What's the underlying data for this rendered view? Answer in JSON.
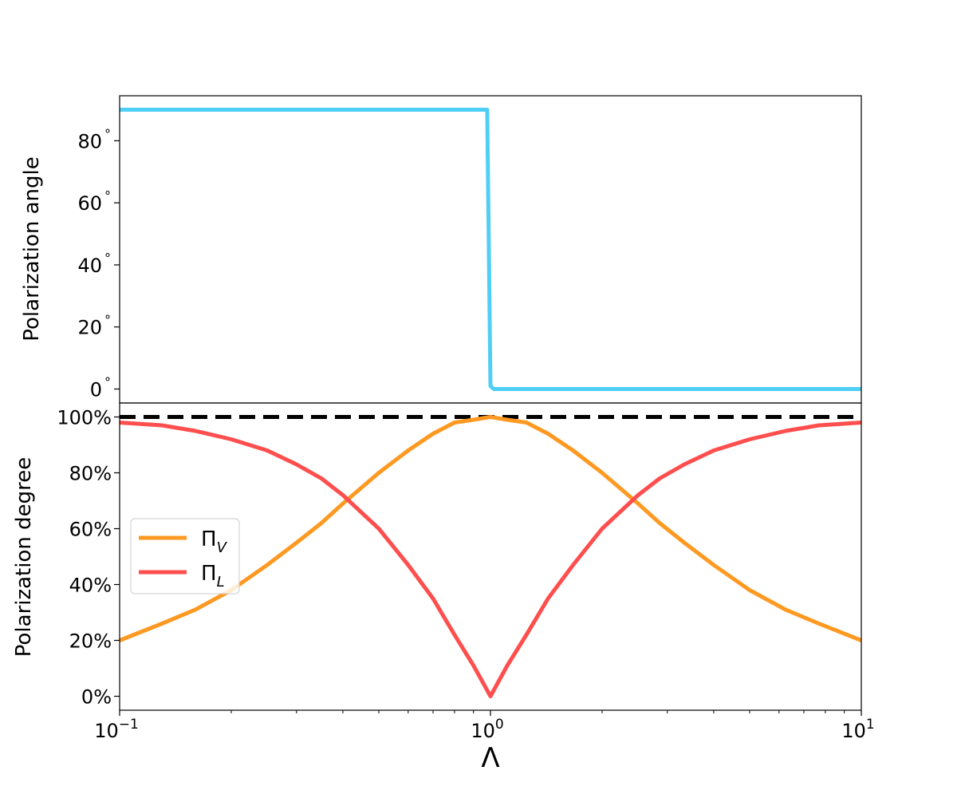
{
  "chart_data": [
    {
      "type": "line",
      "panel": "top",
      "ylabel": "Polarization angle",
      "xscale": "log",
      "xlim": [
        0.1,
        10
      ],
      "ylim": [
        -4.5,
        94.5
      ],
      "yticks": [
        0,
        20,
        40,
        60,
        80
      ],
      "ytick_labels": [
        "0$^\\circ$",
        "20$^\\circ$",
        "40$^\\circ$",
        "60$^\\circ$",
        "80$^\\circ$"
      ],
      "ytick_text": [
        "0",
        "20",
        "40",
        "60",
        "80"
      ],
      "ytick_unit": "°",
      "grid": false,
      "series": [
        {
          "color": "#4fcff5",
          "x": [
            0.1,
            0.98,
            1.0,
            1.02,
            10
          ],
          "y": [
            90,
            90,
            1,
            0,
            0
          ]
        }
      ]
    },
    {
      "type": "line",
      "panel": "bottom",
      "ylabel": "Polarization degree",
      "xlabel": "Λ",
      "xscale": "log",
      "xlim": [
        0.1,
        10
      ],
      "xticks": [
        0.1,
        1,
        10
      ],
      "xtick_labels": [
        {
          "base": "10",
          "exp": "−1"
        },
        {
          "base": "10",
          "exp": "0"
        },
        {
          "base": "10",
          "exp": "1"
        }
      ],
      "ylim": [
        -0.05,
        1.05
      ],
      "yticks": [
        0,
        0.2,
        0.4,
        0.6,
        0.8,
        1.0
      ],
      "ytick_labels": [
        "0%",
        "20%",
        "40%",
        "60%",
        "80%",
        "100%"
      ],
      "grid": false,
      "legend_position": "center-left",
      "reference_line": {
        "y": 1.0,
        "style": "dashed",
        "color": "#000000"
      },
      "series": [
        {
          "name_main": "Π",
          "name_sub": "V",
          "color": "#ff9922",
          "x": [
            0.1,
            0.13,
            0.16,
            0.2,
            0.25,
            0.3,
            0.35,
            0.4,
            0.5,
            0.6,
            0.7,
            0.8,
            0.9,
            1.0,
            1.11,
            1.25,
            1.43,
            1.67,
            2.0,
            2.5,
            2.86,
            3.33,
            4.0,
            5.0,
            6.25,
            7.69,
            10
          ],
          "y": [
            0.2,
            0.26,
            0.31,
            0.38,
            0.47,
            0.55,
            0.62,
            0.69,
            0.8,
            0.88,
            0.94,
            0.98,
            0.99,
            1.0,
            0.99,
            0.98,
            0.94,
            0.88,
            0.8,
            0.69,
            0.62,
            0.55,
            0.47,
            0.38,
            0.31,
            0.26,
            0.2
          ]
        },
        {
          "name_main": "Π",
          "name_sub": "L",
          "color": "#ff4e4e",
          "x": [
            0.1,
            0.13,
            0.16,
            0.2,
            0.25,
            0.3,
            0.35,
            0.4,
            0.5,
            0.6,
            0.7,
            0.8,
            0.9,
            1.0,
            1.11,
            1.25,
            1.43,
            1.67,
            2.0,
            2.5,
            2.86,
            3.33,
            4.0,
            5.0,
            6.25,
            7.69,
            10
          ],
          "y": [
            0.98,
            0.97,
            0.95,
            0.92,
            0.88,
            0.83,
            0.78,
            0.72,
            0.6,
            0.47,
            0.35,
            0.22,
            0.11,
            0.0,
            0.11,
            0.22,
            0.35,
            0.47,
            0.6,
            0.72,
            0.78,
            0.83,
            0.88,
            0.92,
            0.95,
            0.97,
            0.98
          ]
        }
      ]
    }
  ]
}
